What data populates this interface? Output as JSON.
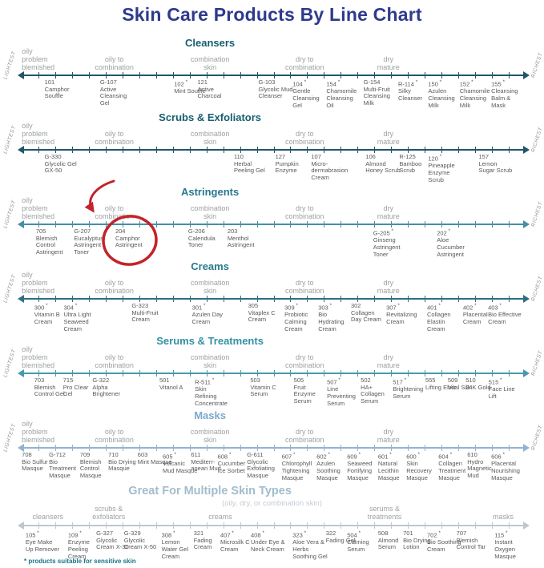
{
  "title": "Skin Care Products By Line Chart",
  "footnote": "* products suitable for sensitive skin",
  "side_labels": {
    "left": "LIGHTEST",
    "right": "RICHEST"
  },
  "colors": {
    "title": "#2e3a8c",
    "product_text": "#58595b",
    "scale_label": "#9da0a2",
    "side_label": "#8f9294",
    "subheading": "#c5ccd3",
    "footnote": "#18758a",
    "annotation": "#c2242b"
  },
  "skin_scale": [
    {
      "text": "oily\nproblem\nblemished",
      "x": 4.0,
      "align": "left"
    },
    {
      "text": "oily to\ncombination",
      "x": 21.0,
      "align": "center"
    },
    {
      "text": "combination\nskin",
      "x": 38.6,
      "align": "center"
    },
    {
      "text": "dry to\ncombination",
      "x": 56.0,
      "align": "center"
    },
    {
      "text": "dry\nmature",
      "x": 71.4,
      "align": "center"
    }
  ],
  "annotation": {
    "type": "hand-drawn circle with arrow",
    "highlighted_product": "204 Camphor Astringent",
    "color": "#c2242b"
  },
  "sections": [
    {
      "heading": "Cleansers",
      "heading_color": "#175e70",
      "axis_color": "#20566a",
      "side_labels": true,
      "products": [
        {
          "code": "101",
          "sensitive": false,
          "name": "Camphor Souffle",
          "x": 8.2
        },
        {
          "code": "G-107",
          "sensitive": false,
          "name": "Active Cleansing Gel",
          "x": 18.4
        },
        {
          "code": "102",
          "sensitive": true,
          "name": "Mint Souffle",
          "x": 32.0
        },
        {
          "code": "121",
          "sensitive": false,
          "name": "Active Charcoal",
          "x": 36.3
        },
        {
          "code": "G-103",
          "sensitive": false,
          "name": "Glycolic Mud Cleanser",
          "x": 47.5
        },
        {
          "code": "104",
          "sensitive": true,
          "name": "Gentle Cleansing Gel",
          "x": 53.8
        },
        {
          "code": "154",
          "sensitive": true,
          "name": "Chamomile Cleansing Oil",
          "x": 60.0
        },
        {
          "code": "G-154",
          "sensitive": false,
          "name": "Multi-Fruit Cleansing Milk",
          "x": 66.8
        },
        {
          "code": "R-114",
          "sensitive": true,
          "name": "Silky Cleanser",
          "x": 73.2
        },
        {
          "code": "150",
          "sensitive": true,
          "name": "Azulen Cleansing Milk",
          "x": 78.7
        },
        {
          "code": "152",
          "sensitive": true,
          "name": "Chamomile Cleansing Milk",
          "x": 84.5
        },
        {
          "code": "155",
          "sensitive": true,
          "name": "Cleansing Balm & Mask",
          "x": 90.3
        }
      ]
    },
    {
      "heading": "Scrubs & Exfoliators",
      "heading_color": "#175e70",
      "axis_color": "#20566a",
      "side_labels": true,
      "products": [
        {
          "code": "G-330",
          "sensitive": false,
          "name": "Glycolic Gel GX-50",
          "x": 8.2
        },
        {
          "code": "110",
          "sensitive": false,
          "name": "Herbal Peeling Gel",
          "x": 43.0
        },
        {
          "code": "127",
          "sensitive": false,
          "name": "Pumpkin Enzyme",
          "x": 50.6
        },
        {
          "code": "107",
          "sensitive": false,
          "name": "Micro-dermabrasion Cream",
          "x": 57.2
        },
        {
          "code": "106",
          "sensitive": false,
          "name": "Almond Honey Scrub",
          "x": 67.2
        },
        {
          "code": "R-125",
          "sensitive": false,
          "name": "Bamboo Scrub",
          "x": 73.4
        },
        {
          "code": "120",
          "sensitive": true,
          "name": "Pineapple Enzyme Scrub",
          "x": 78.7
        },
        {
          "code": "157",
          "sensitive": false,
          "name": "Lemon Sugar Scrub",
          "x": 88.0
        }
      ]
    },
    {
      "heading": "Astringents",
      "heading_color": "#27798e",
      "axis_color": "#448fa6",
      "side_labels": true,
      "products": [
        {
          "code": "705",
          "sensitive": false,
          "name": "Blemish Control Astringent",
          "x": 6.6
        },
        {
          "code": "G-207",
          "sensitive": false,
          "name": "Eucalyptus Astringent Toner",
          "x": 13.6
        },
        {
          "code": "204",
          "sensitive": false,
          "name": "Camphor Astringent",
          "x": 21.2
        },
        {
          "code": "G-206",
          "sensitive": false,
          "name": "Calendula Toner",
          "x": 34.6
        },
        {
          "code": "203",
          "sensitive": false,
          "name": "Menthol Astringent",
          "x": 41.8
        },
        {
          "code": "G-205",
          "sensitive": true,
          "name": "Ginseng Astringent Toner",
          "x": 68.6
        },
        {
          "code": "202",
          "sensitive": true,
          "name": "Aloe Cucumber Astringent",
          "x": 80.3
        }
      ]
    },
    {
      "heading": "Creams",
      "heading_color": "#27798e",
      "axis_color": "#2d7084",
      "side_labels": true,
      "products": [
        {
          "code": "300",
          "sensitive": true,
          "name": "Vitamin B Cream",
          "x": 6.3
        },
        {
          "code": "304",
          "sensitive": true,
          "name": "Ultra Light Seaweed Cream",
          "x": 11.7
        },
        {
          "code": "G-323",
          "sensitive": false,
          "name": "Multi-Fruit Cream",
          "x": 24.2
        },
        {
          "code": "301",
          "sensitive": true,
          "name": "Azulen Day Cream",
          "x": 35.3
        },
        {
          "code": "305",
          "sensitive": false,
          "name": "Vitaplex C Cream",
          "x": 45.6
        },
        {
          "code": "309",
          "sensitive": true,
          "name": "Probiotic Calming Cream",
          "x": 52.3
        },
        {
          "code": "303",
          "sensitive": true,
          "name": "Bio Hydrating Cream",
          "x": 58.5
        },
        {
          "code": "302",
          "sensitive": false,
          "name": "Collagen Day Cream",
          "x": 64.5
        },
        {
          "code": "307",
          "sensitive": true,
          "name": "Revitalizing Cream",
          "x": 71.0
        },
        {
          "code": "401",
          "sensitive": true,
          "name": "Collagen Elastin Cream",
          "x": 78.5
        },
        {
          "code": "402",
          "sensitive": true,
          "name": "Placental Cream",
          "x": 85.1
        },
        {
          "code": "403",
          "sensitive": true,
          "name": "Bio Effective Cream",
          "x": 89.7
        }
      ]
    },
    {
      "heading": "Serums & Treatments",
      "heading_color": "#3390a6",
      "axis_color": "#4799ad",
      "side_labels": true,
      "products": [
        {
          "code": "703",
          "sensitive": false,
          "name": "Blemish Control Gel",
          "x": 6.3
        },
        {
          "code": "715",
          "sensitive": false,
          "name": "Pro Clear Gel",
          "x": 11.6
        },
        {
          "code": "G-322",
          "sensitive": false,
          "name": "Alpha Brightener",
          "x": 17.0
        },
        {
          "code": "501",
          "sensitive": false,
          "name": "Vitanol A",
          "x": 29.3
        },
        {
          "code": "R-511",
          "sensitive": true,
          "name": "Skin Refining Concentrate",
          "x": 35.8
        },
        {
          "code": "503",
          "sensitive": false,
          "name": "Vitamin C Serum",
          "x": 46.0
        },
        {
          "code": "505",
          "sensitive": false,
          "name": "Fruit Enzyme Serum",
          "x": 54.0
        },
        {
          "code": "507",
          "sensitive": true,
          "name": "Line Preventing Serum",
          "x": 60.1
        },
        {
          "code": "502",
          "sensitive": false,
          "name": "HA+ Collagen Serum",
          "x": 66.3
        },
        {
          "code": "517",
          "sensitive": true,
          "name": "Brightening Serum",
          "x": 72.2
        },
        {
          "code": "555",
          "sensitive": false,
          "name": "Lifting Elixir",
          "x": 78.2
        },
        {
          "code": "509",
          "sensitive": false,
          "name": "Vital Silk",
          "x": 82.3
        },
        {
          "code": "510",
          "sensitive": false,
          "name": "24K Gold",
          "x": 85.6
        },
        {
          "code": "515",
          "sensitive": true,
          "name": "Face Line Lift",
          "x": 89.8
        }
      ]
    },
    {
      "heading": "Masks",
      "heading_color": "#79a9cb",
      "axis_color": "#93b3d3",
      "side_labels": true,
      "products": [
        {
          "code": "708",
          "sensitive": false,
          "name": "Bio Sulfur Masque",
          "x": 4.0
        },
        {
          "code": "G-712",
          "sensitive": false,
          "name": "Bio Treatment Masque",
          "x": 9.0
        },
        {
          "code": "709",
          "sensitive": false,
          "name": "Blemish Control Masque",
          "x": 14.7
        },
        {
          "code": "710",
          "sensitive": false,
          "name": "Bio Drying Masque",
          "x": 19.9
        },
        {
          "code": "603",
          "sensitive": false,
          "name": "Mint Masque",
          "x": 25.3
        },
        {
          "code": "605",
          "sensitive": true,
          "name": "Volcanic Mud Masque",
          "x": 29.9
        },
        {
          "code": "611",
          "sensitive": false,
          "name": "Mediterr­anean Mud",
          "x": 35.1
        },
        {
          "code": "608",
          "sensitive": true,
          "name": "Cucumber Ice Sorbet",
          "x": 40.0
        },
        {
          "code": "G-611",
          "sensitive": false,
          "name": "Glycolic Exfoliating Masque",
          "x": 45.4
        },
        {
          "code": "607",
          "sensitive": true,
          "name": "Chlorophyll Tightening Masque",
          "x": 51.8
        },
        {
          "code": "602",
          "sensitive": true,
          "name": "Azulen Soothing Masque",
          "x": 58.2
        },
        {
          "code": "609",
          "sensitive": true,
          "name": "Seaweed Fortifying Masque",
          "x": 63.8
        },
        {
          "code": "601",
          "sensitive": true,
          "name": "Natural Lecithin Masque",
          "x": 69.5
        },
        {
          "code": "600",
          "sensitive": true,
          "name": "Skin Recovery Masque",
          "x": 74.7
        },
        {
          "code": "604",
          "sensitive": true,
          "name": "Collagen Treatment Masque",
          "x": 80.6
        },
        {
          "code": "610",
          "sensitive": false,
          "name": "Hydro Magnetic Mud",
          "x": 85.9
        },
        {
          "code": "606",
          "sensitive": true,
          "name": "Placental Nourishing Masque",
          "x": 90.3
        }
      ]
    },
    {
      "heading": "Great For Multiple Skin Types",
      "subheading": "(oily, dry, or combination skin)",
      "heading_color": "#a2bccd",
      "axis_color": "#bec7cf",
      "side_labels": false,
      "scale": [
        {
          "text": "cleansers",
          "x": 8.8,
          "align": "center"
        },
        {
          "text": "scrubs &\nexfoliators",
          "x": 20.0,
          "align": "center"
        },
        {
          "text": "creams",
          "x": 40.5,
          "align": "center"
        },
        {
          "text": "serums &\ntreatments",
          "x": 70.7,
          "align": "center"
        },
        {
          "text": "masks",
          "x": 92.5,
          "align": "center"
        }
      ],
      "products": [
        {
          "code": "105",
          "sensitive": true,
          "name": "Eye Make Up Remover",
          "x": 4.7
        },
        {
          "code": "109",
          "sensitive": true,
          "name": "Enzyme Peeling Cream",
          "x": 12.5
        },
        {
          "code": "G-327",
          "sensitive": false,
          "name": "Glycolic Cream X-30",
          "x": 17.7
        },
        {
          "code": "G-329",
          "sensitive": false,
          "name": "Glycolic Cream X-50",
          "x": 22.8
        },
        {
          "code": "308",
          "sensitive": true,
          "name": "Lemon Water Gel Cream",
          "x": 29.7
        },
        {
          "code": "321",
          "sensitive": false,
          "name": "Fading Cream",
          "x": 35.6
        },
        {
          "code": "407",
          "sensitive": true,
          "name": "Microsilk C Cream",
          "x": 40.5
        },
        {
          "code": "408",
          "sensitive": true,
          "name": "Under Eye & Neck Cream",
          "x": 46.1
        },
        {
          "code": "323",
          "sensitive": true,
          "name": "Aloe Vera & Herbs Soothing Gel",
          "x": 53.8
        },
        {
          "code": "322",
          "sensitive": false,
          "name": "Fading Gel",
          "x": 59.9
        },
        {
          "code": "504",
          "sensitive": true,
          "name": "Calming Serum",
          "x": 63.8
        },
        {
          "code": "508",
          "sensitive": false,
          "name": "Almond Serum",
          "x": 69.5
        },
        {
          "code": "701",
          "sensitive": false,
          "name": "Bio Drying Lotion",
          "x": 74.1
        },
        {
          "code": "702",
          "sensitive": true,
          "name": "Bio Soothing Cream",
          "x": 78.5
        },
        {
          "code": "707",
          "sensitive": false,
          "name": "Blemish Control Tar",
          "x": 83.9
        },
        {
          "code": "115",
          "sensitive": true,
          "name": "Instant Oxygen Masque",
          "x": 90.9
        }
      ]
    }
  ]
}
